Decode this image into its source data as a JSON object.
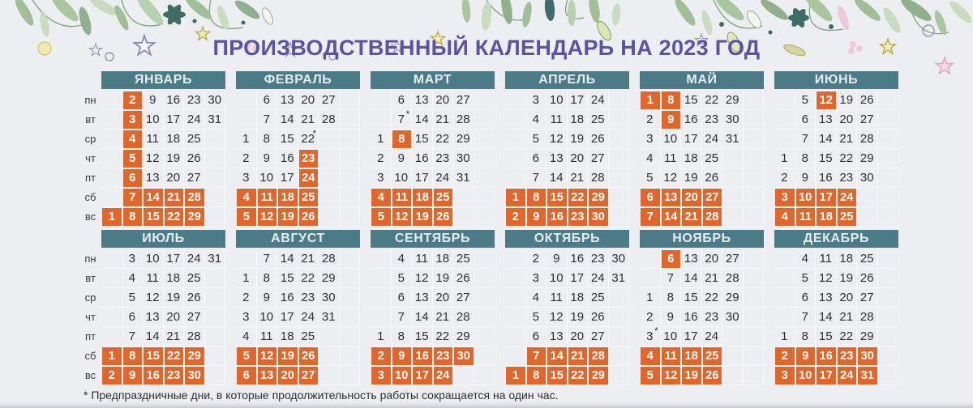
{
  "title": "ПРОИЗВОДСТВЕННЫЙ КАЛЕНДАРЬ НА 2023 ГОД",
  "year": "2023",
  "footnote": "* Предпраздничные дни, в которые продолжительность работы сокращается на один час.",
  "weekday_labels": [
    "пн",
    "вт",
    "ср",
    "чт",
    "пт",
    "сб",
    "вс"
  ],
  "colors": {
    "page_bg": "#edeef2",
    "title": "#5a52a7",
    "month_header_bg": "#4b7b87",
    "month_header_text": "#e4eef0",
    "holiday_bg": "#e1662c",
    "holiday_text": "#ffffff",
    "day_text": "#2f2f2f"
  },
  "decor_icons": [
    "leaf-icon",
    "star-icon",
    "berry-icon",
    "flower-icon",
    "circle-icon"
  ],
  "months": [
    {
      "name": "ЯНВАРЬ",
      "rows": [
        [
          null,
          {
            "d": 2,
            "h": true
          },
          9,
          16,
          23,
          30
        ],
        [
          null,
          {
            "d": 3,
            "h": true
          },
          10,
          17,
          24,
          31
        ],
        [
          null,
          {
            "d": 4,
            "h": true
          },
          11,
          18,
          25,
          null
        ],
        [
          null,
          {
            "d": 5,
            "h": true
          },
          12,
          19,
          26,
          null
        ],
        [
          null,
          {
            "d": 6,
            "h": true
          },
          13,
          20,
          27,
          null
        ],
        [
          null,
          {
            "d": 7,
            "h": true
          },
          {
            "d": 14,
            "h": true
          },
          {
            "d": 21,
            "h": true
          },
          {
            "d": 28,
            "h": true
          },
          null
        ],
        [
          {
            "d": 1,
            "h": true
          },
          {
            "d": 8,
            "h": true
          },
          {
            "d": 15,
            "h": true
          },
          {
            "d": 22,
            "h": true
          },
          {
            "d": 29,
            "h": true
          },
          null
        ]
      ]
    },
    {
      "name": "ФЕВРАЛЬ",
      "rows": [
        [
          null,
          6,
          13,
          20,
          27,
          null
        ],
        [
          null,
          7,
          14,
          21,
          28,
          null
        ],
        [
          1,
          8,
          15,
          {
            "d": 22,
            "s": true
          },
          null,
          null
        ],
        [
          2,
          9,
          16,
          {
            "d": 23,
            "h": true
          },
          null,
          null
        ],
        [
          3,
          10,
          17,
          {
            "d": 24,
            "h": true
          },
          null,
          null
        ],
        [
          {
            "d": 4,
            "h": true
          },
          {
            "d": 11,
            "h": true
          },
          {
            "d": 18,
            "h": true
          },
          {
            "d": 25,
            "h": true
          },
          null,
          null
        ],
        [
          {
            "d": 5,
            "h": true
          },
          {
            "d": 12,
            "h": true
          },
          {
            "d": 19,
            "h": true
          },
          {
            "d": 26,
            "h": true
          },
          null,
          null
        ]
      ]
    },
    {
      "name": "МАРТ",
      "rows": [
        [
          null,
          6,
          13,
          20,
          27,
          null
        ],
        [
          null,
          {
            "d": 7,
            "s": true
          },
          14,
          21,
          28,
          null
        ],
        [
          1,
          {
            "d": 8,
            "h": true
          },
          15,
          22,
          29,
          null
        ],
        [
          2,
          9,
          16,
          23,
          30,
          null
        ],
        [
          3,
          10,
          17,
          24,
          31,
          null
        ],
        [
          {
            "d": 4,
            "h": true
          },
          {
            "d": 11,
            "h": true
          },
          {
            "d": 18,
            "h": true
          },
          {
            "d": 25,
            "h": true
          },
          null,
          null
        ],
        [
          {
            "d": 5,
            "h": true
          },
          {
            "d": 12,
            "h": true
          },
          {
            "d": 19,
            "h": true
          },
          {
            "d": 26,
            "h": true
          },
          null,
          null
        ]
      ]
    },
    {
      "name": "АПРЕЛЬ",
      "rows": [
        [
          null,
          3,
          10,
          17,
          24,
          null
        ],
        [
          null,
          4,
          11,
          18,
          25,
          null
        ],
        [
          null,
          5,
          12,
          19,
          26,
          null
        ],
        [
          null,
          6,
          13,
          20,
          27,
          null
        ],
        [
          null,
          7,
          14,
          21,
          28,
          null
        ],
        [
          {
            "d": 1,
            "h": true
          },
          {
            "d": 8,
            "h": true
          },
          {
            "d": 15,
            "h": true
          },
          {
            "d": 22,
            "h": true
          },
          {
            "d": 29,
            "h": true
          },
          null
        ],
        [
          {
            "d": 2,
            "h": true
          },
          {
            "d": 9,
            "h": true
          },
          {
            "d": 16,
            "h": true
          },
          {
            "d": 23,
            "h": true
          },
          {
            "d": 30,
            "h": true
          },
          null
        ]
      ]
    },
    {
      "name": "МАЙ",
      "rows": [
        [
          {
            "d": 1,
            "h": true
          },
          {
            "d": 8,
            "h": true
          },
          15,
          22,
          29,
          null
        ],
        [
          2,
          {
            "d": 9,
            "h": true
          },
          16,
          23,
          30,
          null
        ],
        [
          3,
          10,
          17,
          24,
          31,
          null
        ],
        [
          4,
          11,
          18,
          25,
          null,
          null
        ],
        [
          5,
          12,
          19,
          26,
          null,
          null
        ],
        [
          {
            "d": 6,
            "h": true
          },
          {
            "d": 13,
            "h": true
          },
          {
            "d": 20,
            "h": true
          },
          {
            "d": 27,
            "h": true
          },
          null,
          null
        ],
        [
          {
            "d": 7,
            "h": true
          },
          {
            "d": 14,
            "h": true
          },
          {
            "d": 21,
            "h": true
          },
          {
            "d": 28,
            "h": true
          },
          null,
          null
        ]
      ]
    },
    {
      "name": "ИЮНЬ",
      "rows": [
        [
          null,
          5,
          {
            "d": 12,
            "h": true
          },
          19,
          26,
          null
        ],
        [
          null,
          6,
          13,
          20,
          27,
          null
        ],
        [
          null,
          7,
          14,
          21,
          28,
          null
        ],
        [
          1,
          8,
          15,
          22,
          29,
          null
        ],
        [
          2,
          9,
          16,
          23,
          30,
          null
        ],
        [
          {
            "d": 3,
            "h": true
          },
          {
            "d": 10,
            "h": true
          },
          {
            "d": 17,
            "h": true
          },
          {
            "d": 24,
            "h": true
          },
          null,
          null
        ],
        [
          {
            "d": 4,
            "h": true
          },
          {
            "d": 11,
            "h": true
          },
          {
            "d": 18,
            "h": true
          },
          {
            "d": 25,
            "h": true
          },
          null,
          null
        ]
      ]
    },
    {
      "name": "ИЮЛЬ",
      "rows": [
        [
          null,
          3,
          10,
          17,
          24,
          31
        ],
        [
          null,
          4,
          11,
          18,
          25,
          null
        ],
        [
          null,
          5,
          12,
          19,
          26,
          null
        ],
        [
          null,
          6,
          13,
          20,
          27,
          null
        ],
        [
          null,
          7,
          14,
          21,
          28,
          null
        ],
        [
          {
            "d": 1,
            "h": true
          },
          {
            "d": 8,
            "h": true
          },
          {
            "d": 15,
            "h": true
          },
          {
            "d": 22,
            "h": true
          },
          {
            "d": 29,
            "h": true
          },
          null
        ],
        [
          {
            "d": 2,
            "h": true
          },
          {
            "d": 9,
            "h": true
          },
          {
            "d": 16,
            "h": true
          },
          {
            "d": 23,
            "h": true
          },
          {
            "d": 30,
            "h": true
          },
          null
        ]
      ]
    },
    {
      "name": "АВГУСТ",
      "rows": [
        [
          null,
          7,
          14,
          21,
          28,
          null
        ],
        [
          1,
          8,
          15,
          22,
          29,
          null
        ],
        [
          2,
          9,
          16,
          23,
          30,
          null
        ],
        [
          3,
          10,
          17,
          24,
          31,
          null
        ],
        [
          4,
          11,
          18,
          25,
          null,
          null
        ],
        [
          {
            "d": 5,
            "h": true
          },
          {
            "d": 12,
            "h": true
          },
          {
            "d": 19,
            "h": true
          },
          {
            "d": 26,
            "h": true
          },
          null,
          null
        ],
        [
          {
            "d": 6,
            "h": true
          },
          {
            "d": 13,
            "h": true
          },
          {
            "d": 20,
            "h": true
          },
          {
            "d": 27,
            "h": true
          },
          null,
          null
        ]
      ]
    },
    {
      "name": "СЕНТЯБРЬ",
      "rows": [
        [
          null,
          4,
          11,
          18,
          25,
          null
        ],
        [
          null,
          5,
          12,
          19,
          26,
          null
        ],
        [
          null,
          6,
          13,
          20,
          27,
          null
        ],
        [
          null,
          7,
          14,
          21,
          28,
          null
        ],
        [
          1,
          8,
          15,
          22,
          29,
          null
        ],
        [
          {
            "d": 2,
            "h": true
          },
          {
            "d": 9,
            "h": true
          },
          {
            "d": 16,
            "h": true
          },
          {
            "d": 23,
            "h": true
          },
          {
            "d": 30,
            "h": true
          },
          null
        ],
        [
          {
            "d": 3,
            "h": true
          },
          {
            "d": 10,
            "h": true
          },
          {
            "d": 17,
            "h": true
          },
          {
            "d": 24,
            "h": true
          },
          null,
          null
        ]
      ]
    },
    {
      "name": "ОКТЯБРЬ",
      "rows": [
        [
          null,
          2,
          9,
          16,
          23,
          30
        ],
        [
          null,
          3,
          10,
          17,
          24,
          31
        ],
        [
          null,
          4,
          11,
          18,
          25,
          null
        ],
        [
          null,
          5,
          12,
          19,
          26,
          null
        ],
        [
          null,
          6,
          13,
          20,
          27,
          null
        ],
        [
          null,
          {
            "d": 7,
            "h": true
          },
          {
            "d": 14,
            "h": true
          },
          {
            "d": 21,
            "h": true
          },
          {
            "d": 28,
            "h": true
          },
          null
        ],
        [
          {
            "d": 1,
            "h": true
          },
          {
            "d": 8,
            "h": true
          },
          {
            "d": 15,
            "h": true
          },
          {
            "d": 22,
            "h": true
          },
          {
            "d": 29,
            "h": true
          },
          null
        ]
      ]
    },
    {
      "name": "НОЯБРЬ",
      "rows": [
        [
          null,
          {
            "d": 6,
            "h": true
          },
          13,
          20,
          27,
          null
        ],
        [
          null,
          7,
          14,
          21,
          28,
          null
        ],
        [
          1,
          8,
          15,
          22,
          29,
          null
        ],
        [
          2,
          9,
          16,
          23,
          30,
          null
        ],
        [
          {
            "d": 3,
            "s": true
          },
          10,
          17,
          24,
          null,
          null
        ],
        [
          {
            "d": 4,
            "h": true
          },
          {
            "d": 11,
            "h": true
          },
          {
            "d": 18,
            "h": true
          },
          {
            "d": 25,
            "h": true
          },
          null,
          null
        ],
        [
          {
            "d": 5,
            "h": true
          },
          {
            "d": 12,
            "h": true
          },
          {
            "d": 19,
            "h": true
          },
          {
            "d": 26,
            "h": true
          },
          null,
          null
        ]
      ]
    },
    {
      "name": "ДЕКАБРЬ",
      "rows": [
        [
          null,
          4,
          11,
          18,
          25,
          null
        ],
        [
          null,
          5,
          12,
          19,
          26,
          null
        ],
        [
          null,
          6,
          13,
          20,
          27,
          null
        ],
        [
          null,
          7,
          14,
          21,
          28,
          null
        ],
        [
          1,
          8,
          15,
          22,
          29,
          null
        ],
        [
          {
            "d": 2,
            "h": true
          },
          {
            "d": 9,
            "h": true
          },
          {
            "d": 16,
            "h": true
          },
          {
            "d": 23,
            "h": true
          },
          {
            "d": 30,
            "h": true
          },
          null
        ],
        [
          {
            "d": 3,
            "h": true
          },
          {
            "d": 10,
            "h": true
          },
          {
            "d": 17,
            "h": true
          },
          {
            "d": 24,
            "h": true
          },
          {
            "d": 31,
            "h": true
          },
          null
        ]
      ]
    }
  ]
}
